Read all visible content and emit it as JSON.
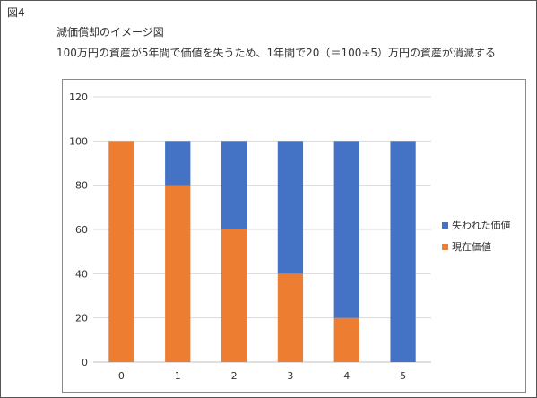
{
  "figure_label": "図4",
  "title": "減価償却のイメージ図",
  "subtitle": "100万円の資産が5年間で価値を失うため、1年間で20（＝100÷5）万円の資産が消滅する",
  "colors": {
    "lost": "#4472C4",
    "current": "#ED7D31",
    "grid": "#D9D9D9",
    "axis": "#BFBFBF"
  },
  "chart_data": {
    "type": "bar",
    "stacked": true,
    "categories": [
      "0",
      "1",
      "2",
      "3",
      "4",
      "5"
    ],
    "series": [
      {
        "name": "現在価値",
        "color": "#ED7D31",
        "values": [
          100,
          80,
          60,
          40,
          20,
          0
        ]
      },
      {
        "name": "失われた価値",
        "color": "#4472C4",
        "values": [
          0,
          20,
          40,
          60,
          80,
          100
        ]
      }
    ],
    "ylim": [
      0,
      120
    ],
    "yticks": [
      0,
      20,
      40,
      60,
      80,
      100,
      120
    ],
    "grid": true,
    "legend": {
      "position": "right",
      "entries": [
        {
          "name": "失われた価値",
          "color": "#4472C4"
        },
        {
          "name": "現在価値",
          "color": "#ED7D31"
        }
      ]
    }
  }
}
